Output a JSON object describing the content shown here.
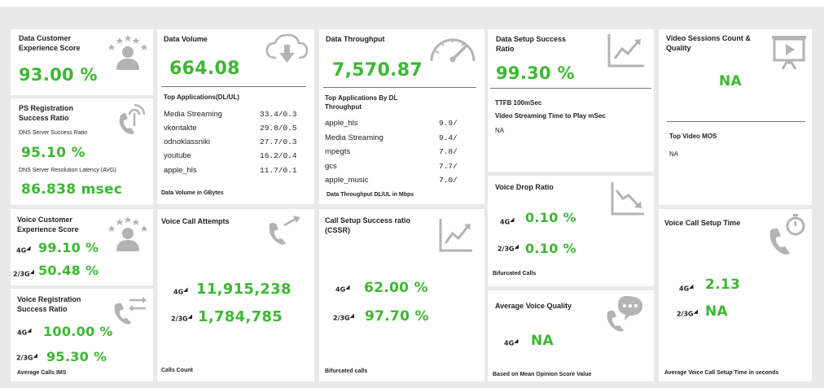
{
  "colors": {
    "accent": "#3cb832",
    "card": "#ffffff",
    "bg": "#e9e9e9",
    "icon": "#b3b3b3"
  },
  "data_customer": {
    "title": "Data Customer Experience Score",
    "value": "93.00 %"
  },
  "ps_reg": {
    "title": "PS Registration Success Ratio",
    "dns_success_label": "DNS Server Success Ratio",
    "dns_success_value": "95.10 %",
    "dns_latency_label": "DNS Server Resolution Latency (AVG)",
    "dns_latency_value": "86.838 msec"
  },
  "voice_customer": {
    "title": "Voice Customer Experience Score",
    "v4g": "99.10 %",
    "v23g": "50.48 %"
  },
  "voice_reg": {
    "title": "Voice Registration Success Ratio",
    "v4g": "100.00 %",
    "v23g": "95.30 %",
    "footer": "Average Calls IMS"
  },
  "data_volume": {
    "title": "Data Volume",
    "value": "664.08",
    "apps_title": "Top Applications(DL/UL)",
    "apps": [
      {
        "name": "Media Streaming",
        "value": "33.4/0.3"
      },
      {
        "name": "vkontakte",
        "value": "29.8/0.5"
      },
      {
        "name": "odnoklassniki",
        "value": "27.7/0.3"
      },
      {
        "name": "youtube",
        "value": "16.2/0.4"
      },
      {
        "name": "apple_hls",
        "value": "11.7/0.1"
      }
    ],
    "footer": "Data Volume in GBytes"
  },
  "voice_attempts": {
    "title": "Voice Call Attempts",
    "v4g": "11,915,238",
    "v23g": "1,784,785",
    "footer": "Calls Count"
  },
  "data_throughput": {
    "title": "Data Throughput",
    "value": "7,570.87",
    "apps_title": "Top Applications By DL Throughput",
    "apps": [
      {
        "name": "apple_hls",
        "value": "9.9/"
      },
      {
        "name": "Media Streaming",
        "value": "9.4/"
      },
      {
        "name": "mpegts",
        "value": "7.8/"
      },
      {
        "name": "gcs",
        "value": "7.7/"
      },
      {
        "name": "apple_music",
        "value": "7.0/"
      }
    ],
    "footer": "Data Throughput DL/UL in Mbps"
  },
  "call_setup": {
    "title": "Call Setup Success ratio (CSSR)",
    "v4g": "62.00 %",
    "v23g": "97.70 %",
    "footer": "Bifurcated calls"
  },
  "data_setup": {
    "title": "Data Setup Success Ratio",
    "value": "99.30 %",
    "ttfb": "TTFB 100mSec",
    "streaming_label": "Video Streaming Time to Play mSec",
    "streaming_value": "NA"
  },
  "voice_drop": {
    "title": "Voice Drop Ratio",
    "v4g": "0.10 %",
    "v23g": "0.10 %",
    "footer": "Bifurcated Calls"
  },
  "avg_voice_quality": {
    "title": "Average Voice Quality",
    "v4g": "NA",
    "footer": "Based on Mean Opinion Score Value"
  },
  "video_sessions": {
    "title": "Video Sessions Count & Quality",
    "value": "NA",
    "mos_label": "Top Video MOS",
    "mos_value": "NA"
  },
  "voice_setup_time": {
    "title": "Voice Call Setup Time",
    "v4g": "2.13",
    "v23g": "NA",
    "footer": "Average Voice Call Setup Time in seconds"
  },
  "labels": {
    "g4": "4G",
    "g23": "2/3G"
  }
}
